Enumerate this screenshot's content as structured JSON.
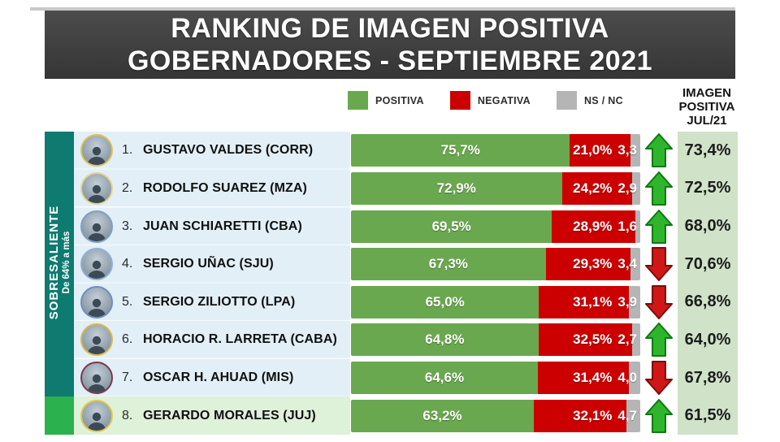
{
  "title": {
    "line1": "RANKING DE IMAGEN POSITIVA",
    "line2": "GOBERNADORES - SEPTIEMBRE 2021"
  },
  "legend": {
    "items": [
      {
        "label": "POSITIVA",
        "color": "#6aa84f"
      },
      {
        "label": "NEGATIVA",
        "color": "#cc0000"
      },
      {
        "label": "NS / NC",
        "color": "#b5b5b5"
      }
    ]
  },
  "jul_header": {
    "line1": "IMAGEN",
    "line2": "POSITIVA",
    "line3": "JUL/21"
  },
  "sidebar": {
    "category": "SOBRESALIENTE",
    "range": "De 64% a más"
  },
  "colors": {
    "positiva": "#6aa84f",
    "negativa": "#cc0000",
    "nsnc": "#b5b5b5",
    "sidebar": "#0e7a70",
    "sidebar-hl": "#2cb14f",
    "rows-bg": "#e2eff7",
    "row8-bg": "#def1d9",
    "jul-bg": "#d0e3c8",
    "title-bg": "#353535",
    "title-bg-light": "#4c4c4c",
    "up": "#2fb52c",
    "down": "#cf1717"
  },
  "chart_data": {
    "type": "bar",
    "orientation": "horizontal_stacked",
    "stack_series": [
      "POSITIVA",
      "NEGATIVA",
      "NS / NC"
    ],
    "unit": "%",
    "xlim": [
      0,
      100
    ],
    "comparison_column": "IMAGEN POSITIVA JUL/21",
    "rows": [
      {
        "rank": "1.",
        "name": "GUSTAVO VALDES (CORR)",
        "positiva": 75.7,
        "negativa": 21.0,
        "ns_nc": 3.3,
        "labels": {
          "positiva": "75,7%",
          "negativa": "21,0%",
          "ns_nc": "3,3"
        },
        "trend": "up",
        "jul21": 73.4,
        "jul21_label": "73,4%",
        "ring": "#dfc24f"
      },
      {
        "rank": "2.",
        "name": "RODOLFO SUAREZ (MZA)",
        "positiva": 72.9,
        "negativa": 24.2,
        "ns_nc": 2.9,
        "labels": {
          "positiva": "72,9%",
          "negativa": "24,2%",
          "ns_nc": "2,9"
        },
        "trend": "up",
        "jul21": 72.5,
        "jul21_label": "72,5%",
        "ring": "#e4d490"
      },
      {
        "rank": "3.",
        "name": "JUAN SCHIARETTI (CBA)",
        "positiva": 69.5,
        "negativa": 28.9,
        "ns_nc": 1.6,
        "labels": {
          "positiva": "69,5%",
          "negativa": "28,9%",
          "ns_nc": "1,6"
        },
        "trend": "up",
        "jul21": 68.0,
        "jul21_label": "68,0%",
        "ring": "#7f9fc6"
      },
      {
        "rank": "4.",
        "name": "SERGIO UÑAC (SJU)",
        "positiva": 67.3,
        "negativa": 29.3,
        "ns_nc": 3.4,
        "labels": {
          "positiva": "67,3%",
          "negativa": "29,3%",
          "ns_nc": "3,4"
        },
        "trend": "down",
        "jul21": 70.6,
        "jul21_label": "70,6%",
        "ring": "#8fb0d8"
      },
      {
        "rank": "5.",
        "name": "SERGIO ZILIOTTO (LPA)",
        "positiva": 65.0,
        "negativa": 31.1,
        "ns_nc": 3.9,
        "labels": {
          "positiva": "65,0%",
          "negativa": "31,1%",
          "ns_nc": "3,9"
        },
        "trend": "down",
        "jul21": 66.8,
        "jul21_label": "66,8%",
        "ring": "#6f8fc0"
      },
      {
        "rank": "6.",
        "name": "HORACIO R. LARRETA (CABA)",
        "positiva": 64.8,
        "negativa": 32.5,
        "ns_nc": 2.7,
        "labels": {
          "positiva": "64,8%",
          "negativa": "32,5%",
          "ns_nc": "2,7"
        },
        "trend": "up",
        "jul21": 64.0,
        "jul21_label": "64,0%",
        "ring": "#d9b84a"
      },
      {
        "rank": "7.",
        "name": "OSCAR H. AHUAD (MIS)",
        "positiva": 64.6,
        "negativa": 31.4,
        "ns_nc": 4.0,
        "labels": {
          "positiva": "64,6%",
          "negativa": "31,4%",
          "ns_nc": "4,0"
        },
        "trend": "down",
        "jul21": 67.8,
        "jul21_label": "67,8%",
        "ring": "#7a3b52"
      },
      {
        "rank": "8.",
        "name": "GERARDO MORALES (JUJ)",
        "positiva": 63.2,
        "negativa": 32.1,
        "ns_nc": 4.7,
        "labels": {
          "positiva": "63,2%",
          "negativa": "32,1%",
          "ns_nc": "4,7"
        },
        "trend": "up",
        "jul21": 61.5,
        "jul21_label": "61,5%",
        "ring": "#e3c84f"
      }
    ]
  }
}
